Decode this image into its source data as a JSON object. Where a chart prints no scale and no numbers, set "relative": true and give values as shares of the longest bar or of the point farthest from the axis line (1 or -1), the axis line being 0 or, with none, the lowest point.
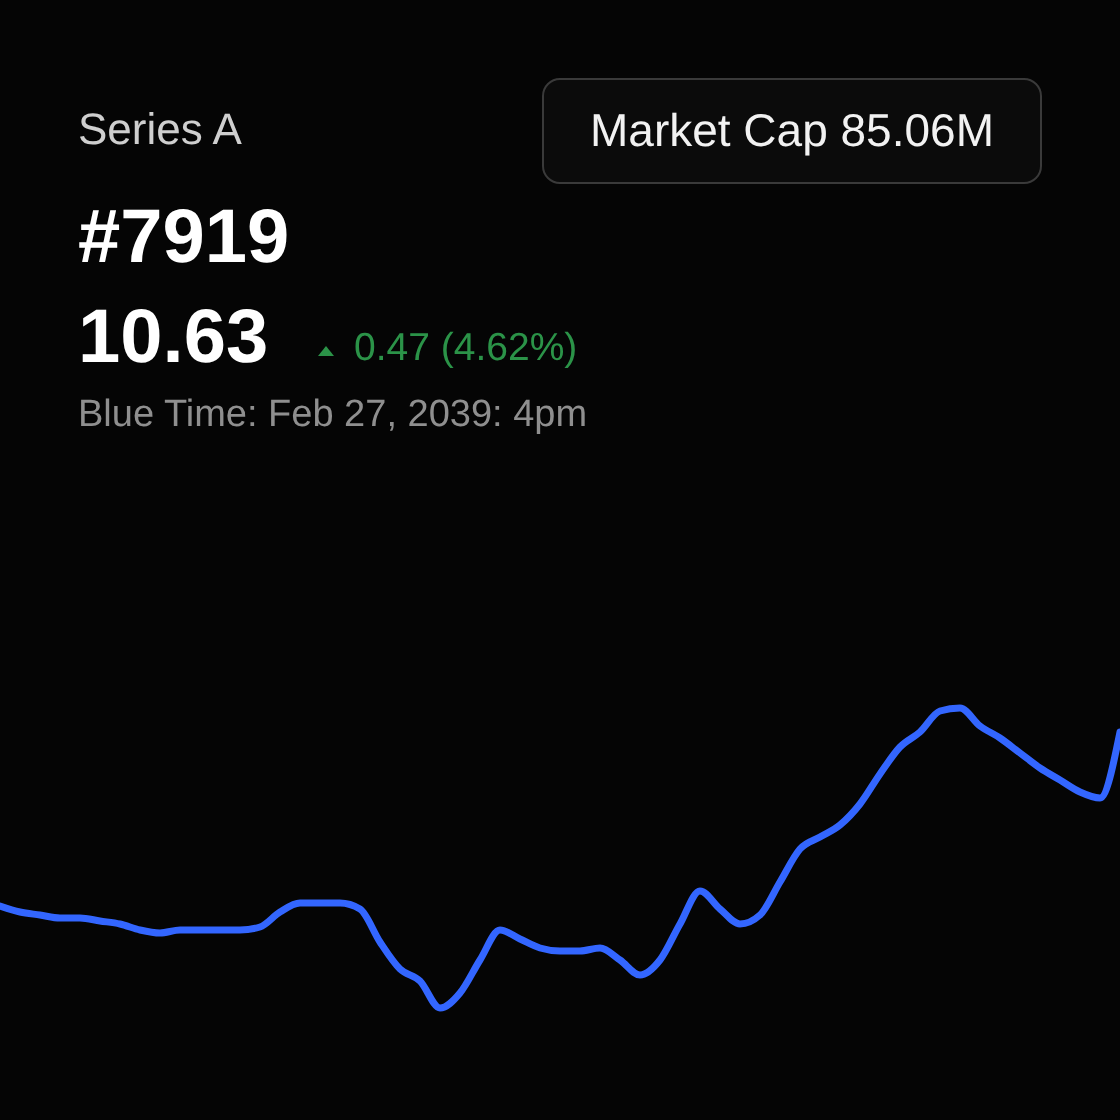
{
  "chart_data": {
    "type": "line",
    "title": "Series A",
    "subtitle": "#7919",
    "annotations": [
      "10.63",
      "0.47 (4.62%)",
      "Blue Time: Feb 27, 2039: 4pm",
      "Market Cap 85.06M"
    ],
    "categories": [
      null,
      null,
      null,
      null,
      null,
      null,
      null,
      null,
      null,
      null,
      null,
      null,
      null,
      null,
      null,
      null,
      null,
      null,
      null,
      null,
      null,
      null,
      null,
      null,
      null,
      null,
      null,
      null,
      null,
      null,
      null,
      null,
      null,
      null,
      null,
      null,
      null,
      null,
      null,
      null,
      null,
      null,
      null,
      null,
      null,
      null,
      null,
      null,
      null,
      null,
      null,
      null,
      null,
      null,
      null,
      null,
      null
    ],
    "series": [
      {
        "color": "#3366ff",
        "values": [
          0.34,
          0.32,
          0.31,
          0.3,
          0.3,
          0.29,
          0.28,
          0.26,
          0.25,
          0.26,
          0.26,
          0.26,
          0.26,
          0.27,
          0.32,
          0.35,
          0.35,
          0.35,
          0.33,
          0.22,
          0.13,
          0.09,
          0,
          0.05,
          0.16,
          0.26,
          0.23,
          0.2,
          0.19,
          0.19,
          0.2,
          0.16,
          0.11,
          0.16,
          0.28,
          0.39,
          0.33,
          0.28,
          0.31,
          0.42,
          0.53,
          0.57,
          0.61,
          0.68,
          0.78,
          0.87,
          0.92,
          0.99,
          1,
          0.94,
          0.9,
          0.85,
          0.8,
          0.76,
          0.72,
          0.7,
          0.92
        ]
      }
    ],
    "relative": true
  }
}
